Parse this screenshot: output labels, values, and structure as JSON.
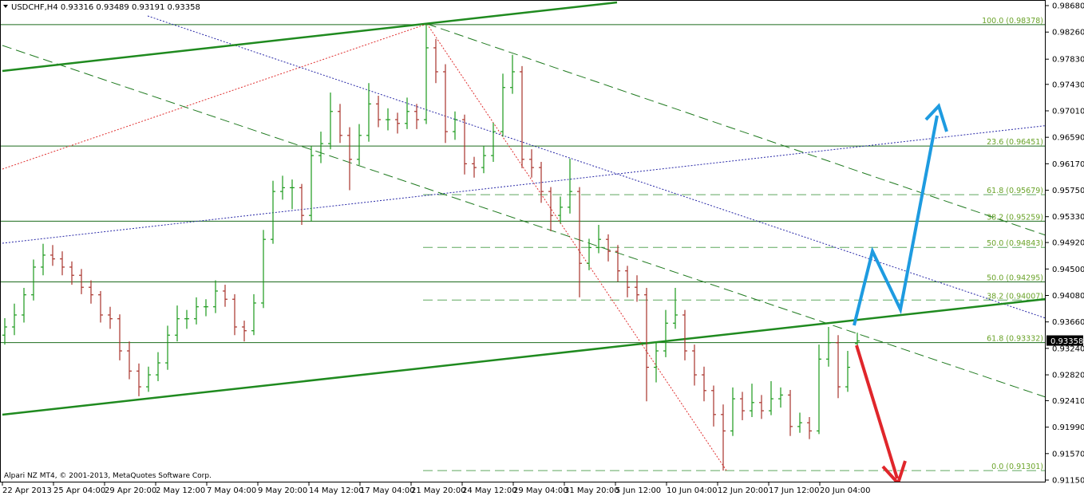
{
  "chart_data": {
    "type": "ohlc",
    "symbol": "USDCHF,H4",
    "copyright": "Alpari NZ MT4, © 2001-2013, MetaQuotes Software Corp.",
    "ylim": [
      0.91112,
      0.98769
    ],
    "yticks": [
      {
        "value": 0.9868,
        "label": "0.98680"
      },
      {
        "value": 0.9826,
        "label": "0.98260"
      },
      {
        "value": 0.9783,
        "label": "0.97830"
      },
      {
        "value": 0.9743,
        "label": "0.97430"
      },
      {
        "value": 0.9701,
        "label": "0.97010"
      },
      {
        "value": 0.9659,
        "label": "0.96590"
      },
      {
        "value": 0.9617,
        "label": "0.96170"
      },
      {
        "value": 0.9575,
        "label": "0.95750"
      },
      {
        "value": 0.9533,
        "label": "0.95330"
      },
      {
        "value": 0.9492,
        "label": "0.94920"
      },
      {
        "value": 0.945,
        "label": "0.94500"
      },
      {
        "value": 0.9408,
        "label": "0.94080"
      },
      {
        "value": 0.9366,
        "label": "0.93660"
      },
      {
        "value": 0.9324,
        "label": "0.93240"
      },
      {
        "value": 0.9282,
        "label": "0.92820"
      },
      {
        "value": 0.9241,
        "label": "0.92410"
      },
      {
        "value": 0.9199,
        "label": "0.91990"
      },
      {
        "value": 0.9157,
        "label": "0.91570"
      },
      {
        "value": 0.9115,
        "label": "0.91150"
      }
    ],
    "x_labels": [
      "22 Apr 2013",
      "25 Apr 04:00",
      "29 Apr 20:00",
      "2 May 12:00",
      "7 May 04:00",
      "9 May 20:00",
      "14 May 12:00",
      "17 May 04:00",
      "21 May 20:00",
      "24 May 12:00",
      "29 May 04:00",
      "31 May 20:00",
      "5 Jun 12:00",
      "10 Jun 04:00",
      "12 Jun 20:00",
      "17 Jun 12:00",
      "20 Jun 04:00"
    ],
    "up_color": "#1a9a1a",
    "down_color": "#a8322a",
    "ohlc": [
      [
        0.9345,
        0.9372,
        0.933,
        0.9358
      ],
      [
        0.9358,
        0.9395,
        0.9345,
        0.9377
      ],
      [
        0.9377,
        0.942,
        0.9365,
        0.9409
      ],
      [
        0.9409,
        0.9465,
        0.94,
        0.9453
      ],
      [
        0.9453,
        0.949,
        0.944,
        0.9472
      ],
      [
        0.9472,
        0.9488,
        0.9455,
        0.9466
      ],
      [
        0.9466,
        0.9478,
        0.944,
        0.9453
      ],
      [
        0.9453,
        0.9462,
        0.9425,
        0.944
      ],
      [
        0.944,
        0.945,
        0.941,
        0.9421
      ],
      [
        0.9421,
        0.9432,
        0.9395,
        0.9409
      ],
      [
        0.9409,
        0.9415,
        0.9365,
        0.9377
      ],
      [
        0.9377,
        0.939,
        0.9355,
        0.9371
      ],
      [
        0.9371,
        0.9378,
        0.9305,
        0.932
      ],
      [
        0.932,
        0.9335,
        0.9275,
        0.9288
      ],
      [
        0.9288,
        0.93,
        0.9248,
        0.9263
      ],
      [
        0.9263,
        0.9295,
        0.9255,
        0.9282
      ],
      [
        0.9282,
        0.9318,
        0.9272,
        0.9301
      ],
      [
        0.9301,
        0.936,
        0.929,
        0.9345
      ],
      [
        0.9345,
        0.9392,
        0.9335,
        0.9371
      ],
      [
        0.9371,
        0.9385,
        0.9355,
        0.9371
      ],
      [
        0.9371,
        0.9405,
        0.9362,
        0.939
      ],
      [
        0.939,
        0.9402,
        0.9375,
        0.939
      ],
      [
        0.939,
        0.9432,
        0.938,
        0.9415
      ],
      [
        0.9415,
        0.9425,
        0.939,
        0.9402
      ],
      [
        0.9402,
        0.941,
        0.9345,
        0.9358
      ],
      [
        0.9358,
        0.9368,
        0.9335,
        0.9352
      ],
      [
        0.9352,
        0.941,
        0.9345,
        0.9396
      ],
      [
        0.9396,
        0.9512,
        0.9388,
        0.9497
      ],
      [
        0.9497,
        0.959,
        0.949,
        0.9573
      ],
      [
        0.9573,
        0.9598,
        0.956,
        0.9579
      ],
      [
        0.9579,
        0.9592,
        0.9545,
        0.9579
      ],
      [
        0.9579,
        0.9585,
        0.952,
        0.9535
      ],
      [
        0.9535,
        0.9645,
        0.9525,
        0.963
      ],
      [
        0.963,
        0.9668,
        0.9618,
        0.9649
      ],
      [
        0.9649,
        0.973,
        0.964,
        0.97
      ],
      [
        0.97,
        0.9712,
        0.965,
        0.9662
      ],
      [
        0.9662,
        0.9675,
        0.9575,
        0.9624
      ],
      [
        0.9624,
        0.968,
        0.9615,
        0.9662
      ],
      [
        0.9662,
        0.9745,
        0.9652,
        0.9712
      ],
      [
        0.9712,
        0.9725,
        0.9675,
        0.9687
      ],
      [
        0.9687,
        0.9705,
        0.967,
        0.9687
      ],
      [
        0.9687,
        0.9698,
        0.9665,
        0.9681
      ],
      [
        0.9681,
        0.9722,
        0.9672,
        0.97
      ],
      [
        0.97,
        0.9712,
        0.9672,
        0.9687
      ],
      [
        0.9687,
        0.9838,
        0.968,
        0.9801
      ],
      [
        0.9801,
        0.9815,
        0.9745,
        0.9763
      ],
      [
        0.9763,
        0.9775,
        0.965,
        0.9668
      ],
      [
        0.9668,
        0.97,
        0.9655,
        0.9687
      ],
      [
        0.9687,
        0.9695,
        0.96,
        0.9617
      ],
      [
        0.9617,
        0.9628,
        0.9595,
        0.9611
      ],
      [
        0.9611,
        0.9645,
        0.9602,
        0.963
      ],
      [
        0.963,
        0.9682,
        0.962,
        0.9668
      ],
      [
        0.9668,
        0.976,
        0.966,
        0.9738
      ],
      [
        0.9738,
        0.979,
        0.9728,
        0.9763
      ],
      [
        0.9763,
        0.9772,
        0.961,
        0.9624
      ],
      [
        0.9624,
        0.964,
        0.9595,
        0.9611
      ],
      [
        0.9611,
        0.962,
        0.9555,
        0.9573
      ],
      [
        0.9573,
        0.958,
        0.951,
        0.9535
      ],
      [
        0.9535,
        0.9565,
        0.9522,
        0.9548
      ],
      [
        0.9548,
        0.9625,
        0.9538,
        0.9573
      ],
      [
        0.9573,
        0.958,
        0.9405,
        0.9459
      ],
      [
        0.9459,
        0.9498,
        0.9448,
        0.9484
      ],
      [
        0.9484,
        0.952,
        0.9475,
        0.9497
      ],
      [
        0.9497,
        0.9505,
        0.9462,
        0.9478
      ],
      [
        0.9478,
        0.9488,
        0.943,
        0.9447
      ],
      [
        0.9447,
        0.9455,
        0.9405,
        0.9421
      ],
      [
        0.9421,
        0.944,
        0.9398,
        0.9409
      ],
      [
        0.9409,
        0.942,
        0.924,
        0.9294
      ],
      [
        0.9294,
        0.9335,
        0.927,
        0.932
      ],
      [
        0.932,
        0.9385,
        0.931,
        0.9364
      ],
      [
        0.9364,
        0.942,
        0.9355,
        0.9377
      ],
      [
        0.9377,
        0.9385,
        0.9305,
        0.932
      ],
      [
        0.932,
        0.933,
        0.9265,
        0.9282
      ],
      [
        0.9282,
        0.9295,
        0.924,
        0.9257
      ],
      [
        0.9257,
        0.9265,
        0.92,
        0.9219
      ],
      [
        0.9219,
        0.9235,
        0.913,
        0.9193
      ],
      [
        0.9193,
        0.9262,
        0.9185,
        0.9244
      ],
      [
        0.9244,
        0.9255,
        0.921,
        0.9225
      ],
      [
        0.9225,
        0.9268,
        0.9215,
        0.9238
      ],
      [
        0.9238,
        0.925,
        0.9212,
        0.9225
      ],
      [
        0.9225,
        0.9272,
        0.9218,
        0.9244
      ],
      [
        0.9244,
        0.9262,
        0.923,
        0.925
      ],
      [
        0.925,
        0.9258,
        0.9185,
        0.92
      ],
      [
        0.92,
        0.9222,
        0.919,
        0.9206
      ],
      [
        0.9206,
        0.9215,
        0.918,
        0.9193
      ],
      [
        0.9193,
        0.933,
        0.9188,
        0.9307
      ],
      [
        0.9307,
        0.9358,
        0.9295,
        0.9333
      ],
      [
        0.9333,
        0.9345,
        0.9245,
        0.9263
      ],
      [
        0.9263,
        0.932,
        0.9255,
        0.9294
      ],
      [
        0.93316,
        0.93489,
        0.93191,
        0.93358
      ]
    ],
    "fib_solid": [
      {
        "label": "100.0 (0.98378)",
        "price": 0.98378
      },
      {
        "label": "23.6 (0.96451)",
        "price": 0.96451
      },
      {
        "label": "38.2 (0.95259)",
        "price": 0.95259
      },
      {
        "label": "50.0 (0.94295)",
        "price": 0.94295
      },
      {
        "label": "61.8 (0.93332)",
        "price": 0.93332
      }
    ],
    "fib_dashed": [
      {
        "label": "61.8 (0.95679)",
        "price": 0.95679
      },
      {
        "label": "50.0 (0.94843)",
        "price": 0.94843
      },
      {
        "label": "38.2 (0.94007)",
        "price": 0.94007
      },
      {
        "label": "0.0 (0.91301)",
        "price": 0.91301
      }
    ]
  }
}
